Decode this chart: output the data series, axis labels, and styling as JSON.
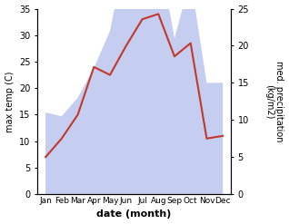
{
  "months": [
    "Jan",
    "Feb",
    "Mar",
    "Apr",
    "May",
    "Jun",
    "Jul",
    "Aug",
    "Sep",
    "Oct",
    "Nov",
    "Dec"
  ],
  "x": [
    0,
    1,
    2,
    3,
    4,
    5,
    6,
    7,
    8,
    9,
    10,
    11
  ],
  "temperature": [
    7,
    10.5,
    15,
    24,
    22.5,
    28,
    33,
    34,
    26,
    28.5,
    10.5,
    11
  ],
  "precipitation": [
    11,
    10.5,
    13,
    17,
    22,
    33,
    34,
    33,
    21,
    29,
    15,
    15
  ],
  "temp_color": "#c0392b",
  "precip_fill_color": "#c5cdf0",
  "temp_ylim": [
    0,
    35
  ],
  "precip_ylim": [
    0,
    25
  ],
  "temp_yticks": [
    0,
    5,
    10,
    15,
    20,
    25,
    30,
    35
  ],
  "precip_yticks": [
    0,
    5,
    10,
    15,
    20,
    25
  ],
  "ylabel_left": "max temp (C)",
  "ylabel_right": "med. precipitation\n(kg/m2)",
  "xlabel": "date (month)",
  "background_color": "#ffffff",
  "temp_linewidth": 1.5,
  "label_fontsize": 7,
  "tick_fontsize": 7,
  "xlabel_fontsize": 8
}
